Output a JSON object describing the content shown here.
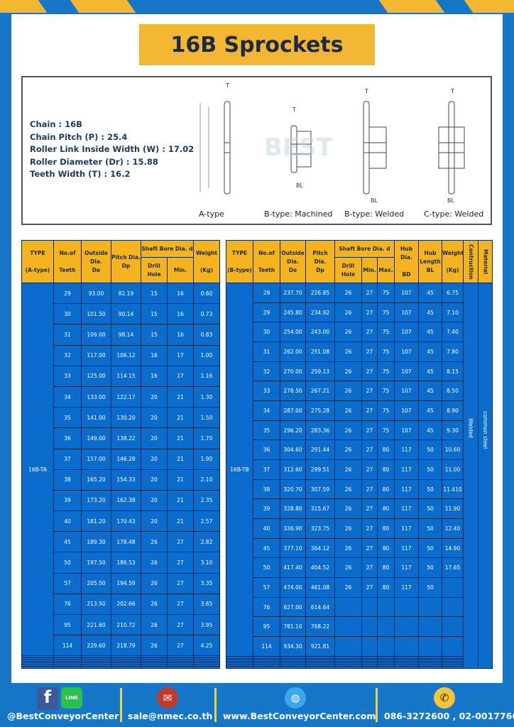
{
  "title": "16B Sprockets",
  "specs": [
    "Chain  :  16B",
    "Chain Pitch (P)  :  25.4",
    "Roller Link Inside Width (W)  :  17.02",
    "Roller Diameter (Dr)  : 15.88",
    "Teeth Width (T)  :  16.2"
  ],
  "diagram_labels": [
    "A-type",
    "B-type: Machined",
    "B-type: Welded",
    "C-type: Welded"
  ],
  "watermark": "BEST CONVEYOR CENTER",
  "colors": {
    "frame": "#1677c9",
    "accent": "#f2b632",
    "cell": "#0a6ccc",
    "header": "#f5b41e"
  },
  "table_a": {
    "headers": {
      "type": "TYPE",
      "type_sub": "(A-type)",
      "teeth": "No.of",
      "teeth_sub": "Teeth",
      "do": "Outside",
      "do_2": "Dia.",
      "do_3": "Do",
      "dp": "Pitch Dia.",
      "dp_sub": "Dp",
      "bore": "Shaft Bore Dia. d",
      "drill": "Drill Hole",
      "min": "Min.",
      "weight": "Weight",
      "weight_sub": "(Kg)"
    },
    "type_value": "16B-TA",
    "rows": [
      [
        "29",
        "93.00",
        "82.19",
        "15",
        "16",
        "0.60"
      ],
      [
        "30",
        "101.50",
        "90.14",
        "15",
        "16",
        "0.73"
      ],
      [
        "31",
        "109.00",
        "98.14",
        "15",
        "16",
        "0.83"
      ],
      [
        "32",
        "117.00",
        "106.12",
        "16",
        "17",
        "1.00"
      ],
      [
        "33",
        "125.00",
        "114.15",
        "16",
        "17",
        "1.16"
      ],
      [
        "34",
        "133.00",
        "122.17",
        "20",
        "21",
        "1.30"
      ],
      [
        "35",
        "141.00",
        "130.20",
        "20",
        "21",
        "1.50"
      ],
      [
        "36",
        "149.00",
        "138.22",
        "20",
        "21",
        "1.70"
      ],
      [
        "37",
        "157.00",
        "146.28",
        "20",
        "21",
        "1.90"
      ],
      [
        "38",
        "165.20",
        "154.33",
        "20",
        "21",
        "2.10"
      ],
      [
        "39",
        "173.20",
        "162.38",
        "20",
        "21",
        "2.35"
      ],
      [
        "40",
        "181.20",
        "170.43",
        "20",
        "21",
        "2.57"
      ],
      [
        "45",
        "189.30",
        "178.48",
        "26",
        "27",
        "2.82"
      ],
      [
        "50",
        "197.50",
        "186.53",
        "26",
        "27",
        "3.10"
      ],
      [
        "57",
        "205.50",
        "194.59",
        "26",
        "27",
        "3.35"
      ],
      [
        "76",
        "213.50",
        "202.66",
        "26",
        "27",
        "3.65"
      ],
      [
        "95",
        "221.60",
        "210.72",
        "26",
        "27",
        "3.95"
      ],
      [
        "114",
        "229.60",
        "218.79",
        "26",
        "27",
        "4.25"
      ]
    ]
  },
  "table_b": {
    "headers": {
      "type": "TYPE",
      "type_sub": "(B-type)",
      "teeth": "No.of",
      "teeth_sub": "Teeth",
      "do": "Outside",
      "do_2": "Dia.",
      "do_3": "Do",
      "dp": "Pitch Dia.",
      "dp_sub": "Dp",
      "bore": "Shaft Bore Dia. d",
      "drill": "Drill Hole",
      "min": "Min.",
      "max": "Max.",
      "bd": "Hub Dia.",
      "bd_sub": "BD",
      "bl": "Hub",
      "bl_2": "Length",
      "bl_3": "BL",
      "weight": "Weight",
      "weight_sub": "(Kg)",
      "construction": "Contruction",
      "material": "Material"
    },
    "type_value": "16B-TB",
    "construction_value": "Welded",
    "material_value": "common steel",
    "rows": [
      [
        "28",
        "237.70",
        "226.85",
        "26",
        "27",
        "75",
        "107",
        "45",
        "6.75"
      ],
      [
        "29",
        "245.80",
        "234.92",
        "26",
        "27",
        "75",
        "107",
        "45",
        "7.10"
      ],
      [
        "30",
        "254.00",
        "243.00",
        "26",
        "27",
        "75",
        "107",
        "45",
        "7.40"
      ],
      [
        "31",
        "262.00",
        "251.08",
        "26",
        "27",
        "75",
        "107",
        "45",
        "7.80"
      ],
      [
        "32",
        "270.00",
        "259.13",
        "26",
        "27",
        "75",
        "107",
        "45",
        "8.15"
      ],
      [
        "33",
        "278.50",
        "267.21",
        "26",
        "27",
        "75",
        "107",
        "45",
        "8.50"
      ],
      [
        "34",
        "287.00",
        "275.28",
        "26",
        "27",
        "75",
        "107",
        "45",
        "8.90"
      ],
      [
        "35",
        "296.20",
        "283.36",
        "26",
        "27",
        "75",
        "107",
        "45",
        "9.30"
      ],
      [
        "36",
        "304.60",
        "291.44",
        "26",
        "27",
        "80",
        "117",
        "50",
        "10.60"
      ],
      [
        "37",
        "312.60",
        "299.51",
        "26",
        "27",
        "80",
        "117",
        "50",
        "11.00"
      ],
      [
        "38",
        "320.70",
        "307.59",
        "26",
        "27",
        "80",
        "117",
        "50",
        "11.410"
      ],
      [
        "39",
        "328.80",
        "315.67",
        "26",
        "27",
        "80",
        "117",
        "50",
        "11.90"
      ],
      [
        "40",
        "336.90",
        "323.75",
        "26",
        "27",
        "80",
        "117",
        "50",
        "12.40"
      ],
      [
        "45",
        "377.10",
        "364.12",
        "26",
        "27",
        "80",
        "117",
        "50",
        "14.90"
      ],
      [
        "50",
        "417.40",
        "404.52",
        "26",
        "27",
        "80",
        "117",
        "50",
        "17.65"
      ],
      [
        "57",
        "474.00",
        "461.08",
        "26",
        "27",
        "80",
        "117",
        "50",
        ""
      ],
      [
        "76",
        "627.00",
        "614.64",
        "",
        "",
        "",
        "",
        "",
        ""
      ],
      [
        "95",
        "781.10",
        "768.22",
        "",
        "",
        "",
        "",
        "",
        ""
      ],
      [
        "114",
        "934.30",
        "921.81",
        "",
        "",
        "",
        "",
        "",
        ""
      ]
    ]
  },
  "footer": {
    "social": "@BestConveyorCenter",
    "line_label": "LINE",
    "email": "sale@nmec.co.th",
    "website": "www.BestConveyorCenter.com",
    "phone": "086-3272600 , 02-0017766"
  }
}
